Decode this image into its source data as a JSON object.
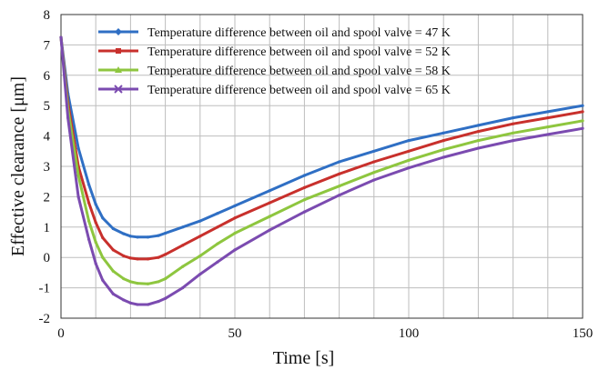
{
  "chart_data": {
    "type": "line",
    "title": "",
    "xlabel": "Time [s]",
    "ylabel": "Effective clearance [μm]",
    "xlim": [
      0,
      150
    ],
    "ylim": [
      -2,
      8
    ],
    "xticks": [
      0,
      50,
      100,
      150
    ],
    "yticks": [
      -2,
      -1,
      0,
      1,
      2,
      3,
      4,
      5,
      6,
      7,
      8
    ],
    "grid": true,
    "legend_position": "top-right",
    "x": [
      0,
      2,
      5,
      8,
      10,
      12,
      15,
      18,
      20,
      22,
      25,
      28,
      30,
      35,
      40,
      45,
      50,
      60,
      70,
      80,
      90,
      100,
      110,
      120,
      130,
      140,
      150
    ],
    "series": [
      {
        "name": "Temperature difference between oil and spool valve = 47 K",
        "color": "#2f6fc4",
        "marker": "diamond",
        "values": [
          7.25,
          5.4,
          3.6,
          2.4,
          1.75,
          1.3,
          0.95,
          0.78,
          0.7,
          0.67,
          0.67,
          0.72,
          0.8,
          1.0,
          1.2,
          1.45,
          1.7,
          2.2,
          2.7,
          3.15,
          3.5,
          3.85,
          4.1,
          4.35,
          4.6,
          4.8,
          5.0
        ]
      },
      {
        "name": "Temperature difference between oil and spool valve = 52 K",
        "color": "#c8302c",
        "marker": "square",
        "values": [
          7.25,
          5.1,
          3.0,
          1.8,
          1.15,
          0.65,
          0.25,
          0.05,
          -0.02,
          -0.05,
          -0.05,
          0.0,
          0.1,
          0.4,
          0.7,
          1.0,
          1.3,
          1.8,
          2.3,
          2.75,
          3.15,
          3.5,
          3.85,
          4.15,
          4.4,
          4.6,
          4.8
        ]
      },
      {
        "name": "Temperature difference between oil and spool valve = 58 K",
        "color": "#8ec63f",
        "marker": "triangle",
        "values": [
          7.25,
          4.9,
          2.7,
          1.2,
          0.5,
          0.0,
          -0.45,
          -0.7,
          -0.8,
          -0.85,
          -0.87,
          -0.8,
          -0.7,
          -0.3,
          0.05,
          0.45,
          0.8,
          1.35,
          1.9,
          2.35,
          2.8,
          3.2,
          3.55,
          3.85,
          4.1,
          4.3,
          4.5
        ]
      },
      {
        "name": "Temperature difference between oil and spool valve = 65 K",
        "color": "#7b4bb0",
        "marker": "x",
        "values": [
          7.25,
          4.6,
          2.0,
          0.6,
          -0.2,
          -0.75,
          -1.2,
          -1.4,
          -1.5,
          -1.55,
          -1.55,
          -1.45,
          -1.35,
          -1.0,
          -0.55,
          -0.15,
          0.25,
          0.9,
          1.5,
          2.05,
          2.55,
          2.95,
          3.3,
          3.6,
          3.85,
          4.05,
          4.25
        ]
      }
    ]
  }
}
